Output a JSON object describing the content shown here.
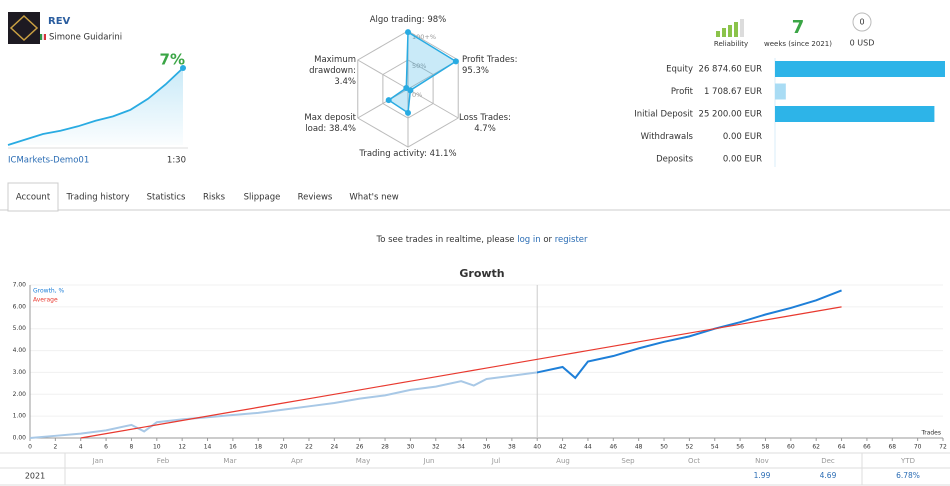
{
  "header": {
    "name": "REV",
    "author": "Simone Guidarini",
    "broker": "ICMarkets-Demo01",
    "leverage": "1:30"
  },
  "summary": {
    "reliability": "Reliability",
    "weeks": "7",
    "weeks_label": "weeks (since 2021)",
    "subscribers": "0",
    "funds": "0 USD"
  },
  "tabs": [
    "Account",
    "Trading history",
    "Statistics",
    "Risks",
    "Slippage",
    "Reviews",
    "What's new"
  ],
  "active_tab": 0,
  "notice": {
    "text": "To see trades in realtime, please",
    "login": "log in",
    "or": "or",
    "register": "register"
  },
  "chart_data": [
    {
      "type": "area",
      "label": "7%",
      "color": "#29abe2",
      "values": [
        0,
        0.5,
        1.0,
        1.3,
        1.7,
        2.2,
        2.6,
        3.2,
        4.2,
        5.5,
        7
      ]
    },
    {
      "type": "radar",
      "color": "#29abe2",
      "categories": [
        "Algo trading: 98%",
        "Profit Trades: 95.3%",
        "Loss Trades: 4.7%",
        "Trading activity: 41.1%",
        "Max deposit load: 38.4%",
        "Maximum drawdown: 3.4%"
      ],
      "values": [
        98,
        95.3,
        4.7,
        41.1,
        38.4,
        3.4
      ],
      "rlim": [
        0,
        100
      ],
      "rticks": [
        {
          "value": 0,
          "label": "0%"
        },
        {
          "value": 50,
          "label": "50%"
        },
        {
          "value": 100,
          "label": "100+%"
        }
      ]
    },
    {
      "type": "hbar",
      "categories": [
        "Equity",
        "Profit",
        "Initial Deposit",
        "Withdrawals",
        "Deposits"
      ],
      "values": [
        26874.6,
        1708.67,
        25200.0,
        0,
        0
      ],
      "value_labels": [
        "26 874.60 EUR",
        "1 708.67 EUR",
        "25 200.00 EUR",
        "0.00 EUR",
        "0.00 EUR"
      ],
      "colors": [
        "#2db4e8",
        "#a9dcf4",
        "#2db4e8",
        "#2db4e8",
        "#2db4e8"
      ]
    },
    {
      "type": "line",
      "title": "Growth",
      "xlabel": "Trades",
      "marker_x": 40,
      "grid": true,
      "x": [
        0,
        2,
        4,
        6,
        8,
        9,
        10,
        12,
        14,
        16,
        18,
        20,
        22,
        24,
        26,
        28,
        30,
        32,
        34,
        35,
        36,
        38,
        40,
        42,
        43,
        44,
        46,
        48,
        50,
        52,
        54,
        56,
        58,
        60,
        62,
        64
      ],
      "series": [
        {
          "name": "Growth, %",
          "color": "#1e7fd8",
          "past_color": "#a8c8e6",
          "values": [
            0,
            0.1,
            0.2,
            0.35,
            0.6,
            0.3,
            0.72,
            0.85,
            0.95,
            1.05,
            1.15,
            1.3,
            1.45,
            1.6,
            1.8,
            1.95,
            2.2,
            2.35,
            2.6,
            2.4,
            2.7,
            2.85,
            3.0,
            3.25,
            2.75,
            3.5,
            3.75,
            4.1,
            4.4,
            4.65,
            5.0,
            5.3,
            5.65,
            5.95,
            6.3,
            6.75
          ]
        },
        {
          "name": "Average",
          "color": "#e8392f",
          "values": [
            null,
            null,
            0,
            0.2,
            0.4,
            0.5,
            0.6,
            0.8,
            1.0,
            1.2,
            1.4,
            1.6,
            1.8,
            2.0,
            2.2,
            2.4,
            2.6,
            2.8,
            3.0,
            3.1,
            3.2,
            3.4,
            3.6,
            3.8,
            3.9,
            4.0,
            4.2,
            4.4,
            4.6,
            4.8,
            5.0,
            5.2,
            5.4,
            5.6,
            5.8,
            6.0
          ]
        }
      ],
      "xlim": [
        0,
        72
      ],
      "xticks": [
        0,
        2,
        4,
        6,
        8,
        10,
        12,
        14,
        16,
        18,
        20,
        22,
        24,
        26,
        28,
        30,
        32,
        34,
        36,
        38,
        40,
        42,
        44,
        46,
        48,
        50,
        52,
        54,
        56,
        58,
        60,
        62,
        64,
        66,
        68,
        70,
        72
      ],
      "ylim": [
        0,
        7
      ],
      "yticks": [
        {
          "value": 0,
          "label": "0.00"
        },
        {
          "value": 1,
          "label": "1.00"
        },
        {
          "value": 2,
          "label": "2.00"
        },
        {
          "value": 3,
          "label": "3.00"
        },
        {
          "value": 4,
          "label": "4.00"
        },
        {
          "value": 5,
          "label": "5.00"
        },
        {
          "value": 6,
          "label": "6.00"
        },
        {
          "value": 7,
          "label": "7.00"
        }
      ]
    }
  ],
  "monthly": {
    "year": "2021",
    "months": [
      "Jan",
      "Feb",
      "Mar",
      "Apr",
      "May",
      "Jun",
      "Jul",
      "Aug",
      "Sep",
      "Oct",
      "Nov",
      "Dec"
    ],
    "values": [
      null,
      null,
      null,
      null,
      null,
      null,
      null,
      null,
      null,
      null,
      "1.99",
      "4.69"
    ],
    "ytd_label": "YTD",
    "ytd": "6.78%"
  }
}
